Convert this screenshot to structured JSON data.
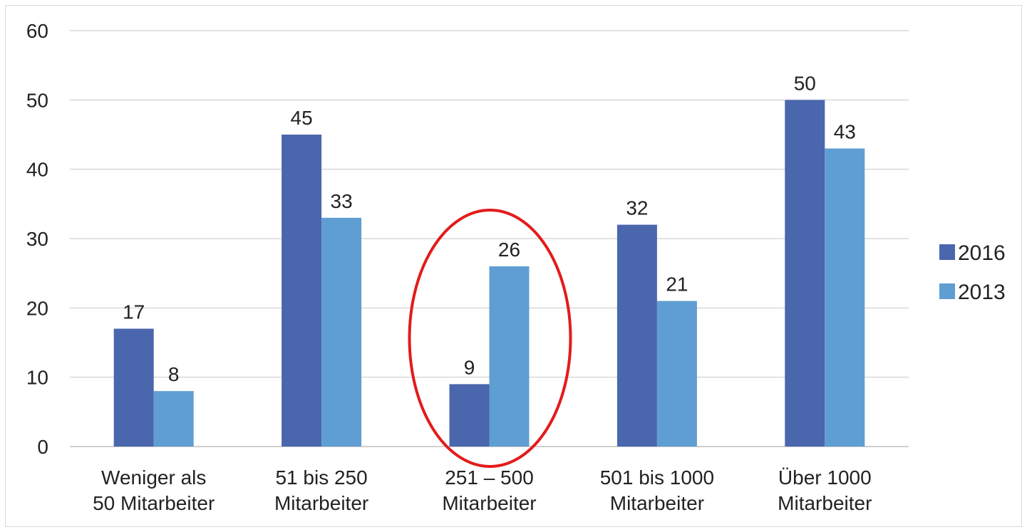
{
  "chart_data": {
    "type": "bar",
    "categories": [
      [
        "Weniger als",
        "50 Mitarbeiter"
      ],
      [
        "51 bis 250",
        "Mitarbeiter"
      ],
      [
        "251 – 500",
        "Mitarbeiter"
      ],
      [
        "501 bis 1000",
        "Mitarbeiter"
      ],
      [
        "Über 1000",
        "Mitarbeiter"
      ]
    ],
    "series": [
      {
        "name": "2016",
        "color": "#4a66ad",
        "values": [
          17,
          45,
          9,
          32,
          50
        ]
      },
      {
        "name": "2013",
        "color": "#5f9ed2",
        "values": [
          8,
          33,
          26,
          21,
          43
        ]
      }
    ],
    "ylim": [
      0,
      60
    ],
    "yticks": [
      0,
      10,
      20,
      30,
      40,
      50,
      60
    ],
    "grid": true,
    "legend": "right",
    "title": "",
    "xlabel": "",
    "ylabel": "",
    "highlight": {
      "category_index": 2,
      "shape": "ellipse",
      "color": "#e31b1b"
    }
  }
}
